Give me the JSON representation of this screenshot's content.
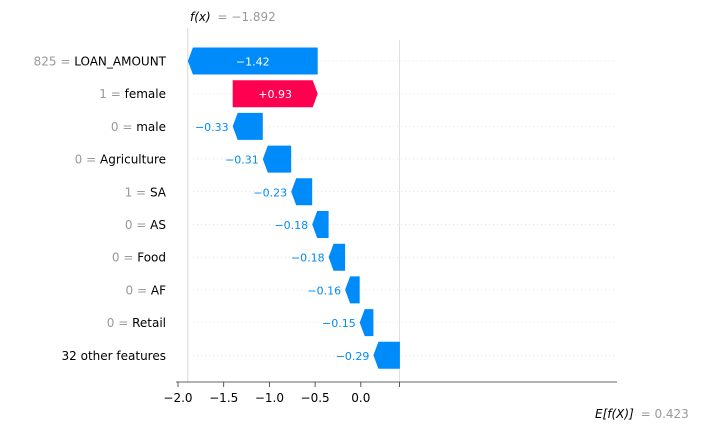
{
  "chart_data": {
    "type": "waterfall",
    "title": "",
    "fx_label": "f(x)",
    "fx_value": "= −1.892",
    "base_label": "E[f(X)]",
    "base_value": "= 0.423",
    "fx": -1.892,
    "base": 0.423,
    "xlim": [
      -2.05,
      0.43
    ],
    "xticks": [
      -2.0,
      -1.5,
      -1.0,
      -0.5,
      0.0
    ],
    "xtick_labels": [
      "−2.0",
      "−1.5",
      "−1.0",
      "−0.5",
      "0.0"
    ],
    "grid": false,
    "colors": {
      "positive": "#ff0051",
      "negative": "#008bfb",
      "value_text": "#999999",
      "name_text": "#000000"
    },
    "rows": [
      {
        "value_label": "825",
        "feature": "LOAN_AMOUNT",
        "contribution": -1.42,
        "label": "−1.42"
      },
      {
        "value_label": "1",
        "feature": "female",
        "contribution": 0.93,
        "label": "+0.93"
      },
      {
        "value_label": "0",
        "feature": "male",
        "contribution": -0.33,
        "label": "−0.33"
      },
      {
        "value_label": "0",
        "feature": "Agriculture",
        "contribution": -0.31,
        "label": "−0.31"
      },
      {
        "value_label": "1",
        "feature": "SA",
        "contribution": -0.23,
        "label": "−0.23"
      },
      {
        "value_label": "0",
        "feature": "AS",
        "contribution": -0.18,
        "label": "−0.18"
      },
      {
        "value_label": "0",
        "feature": "Food",
        "contribution": -0.18,
        "label": "−0.18"
      },
      {
        "value_label": "0",
        "feature": "AF",
        "contribution": -0.16,
        "label": "−0.16"
      },
      {
        "value_label": "0",
        "feature": "Retail",
        "contribution": -0.15,
        "label": "−0.15"
      },
      {
        "value_label": "",
        "feature": "32 other features",
        "contribution": -0.29,
        "label": "−0.29"
      }
    ]
  }
}
